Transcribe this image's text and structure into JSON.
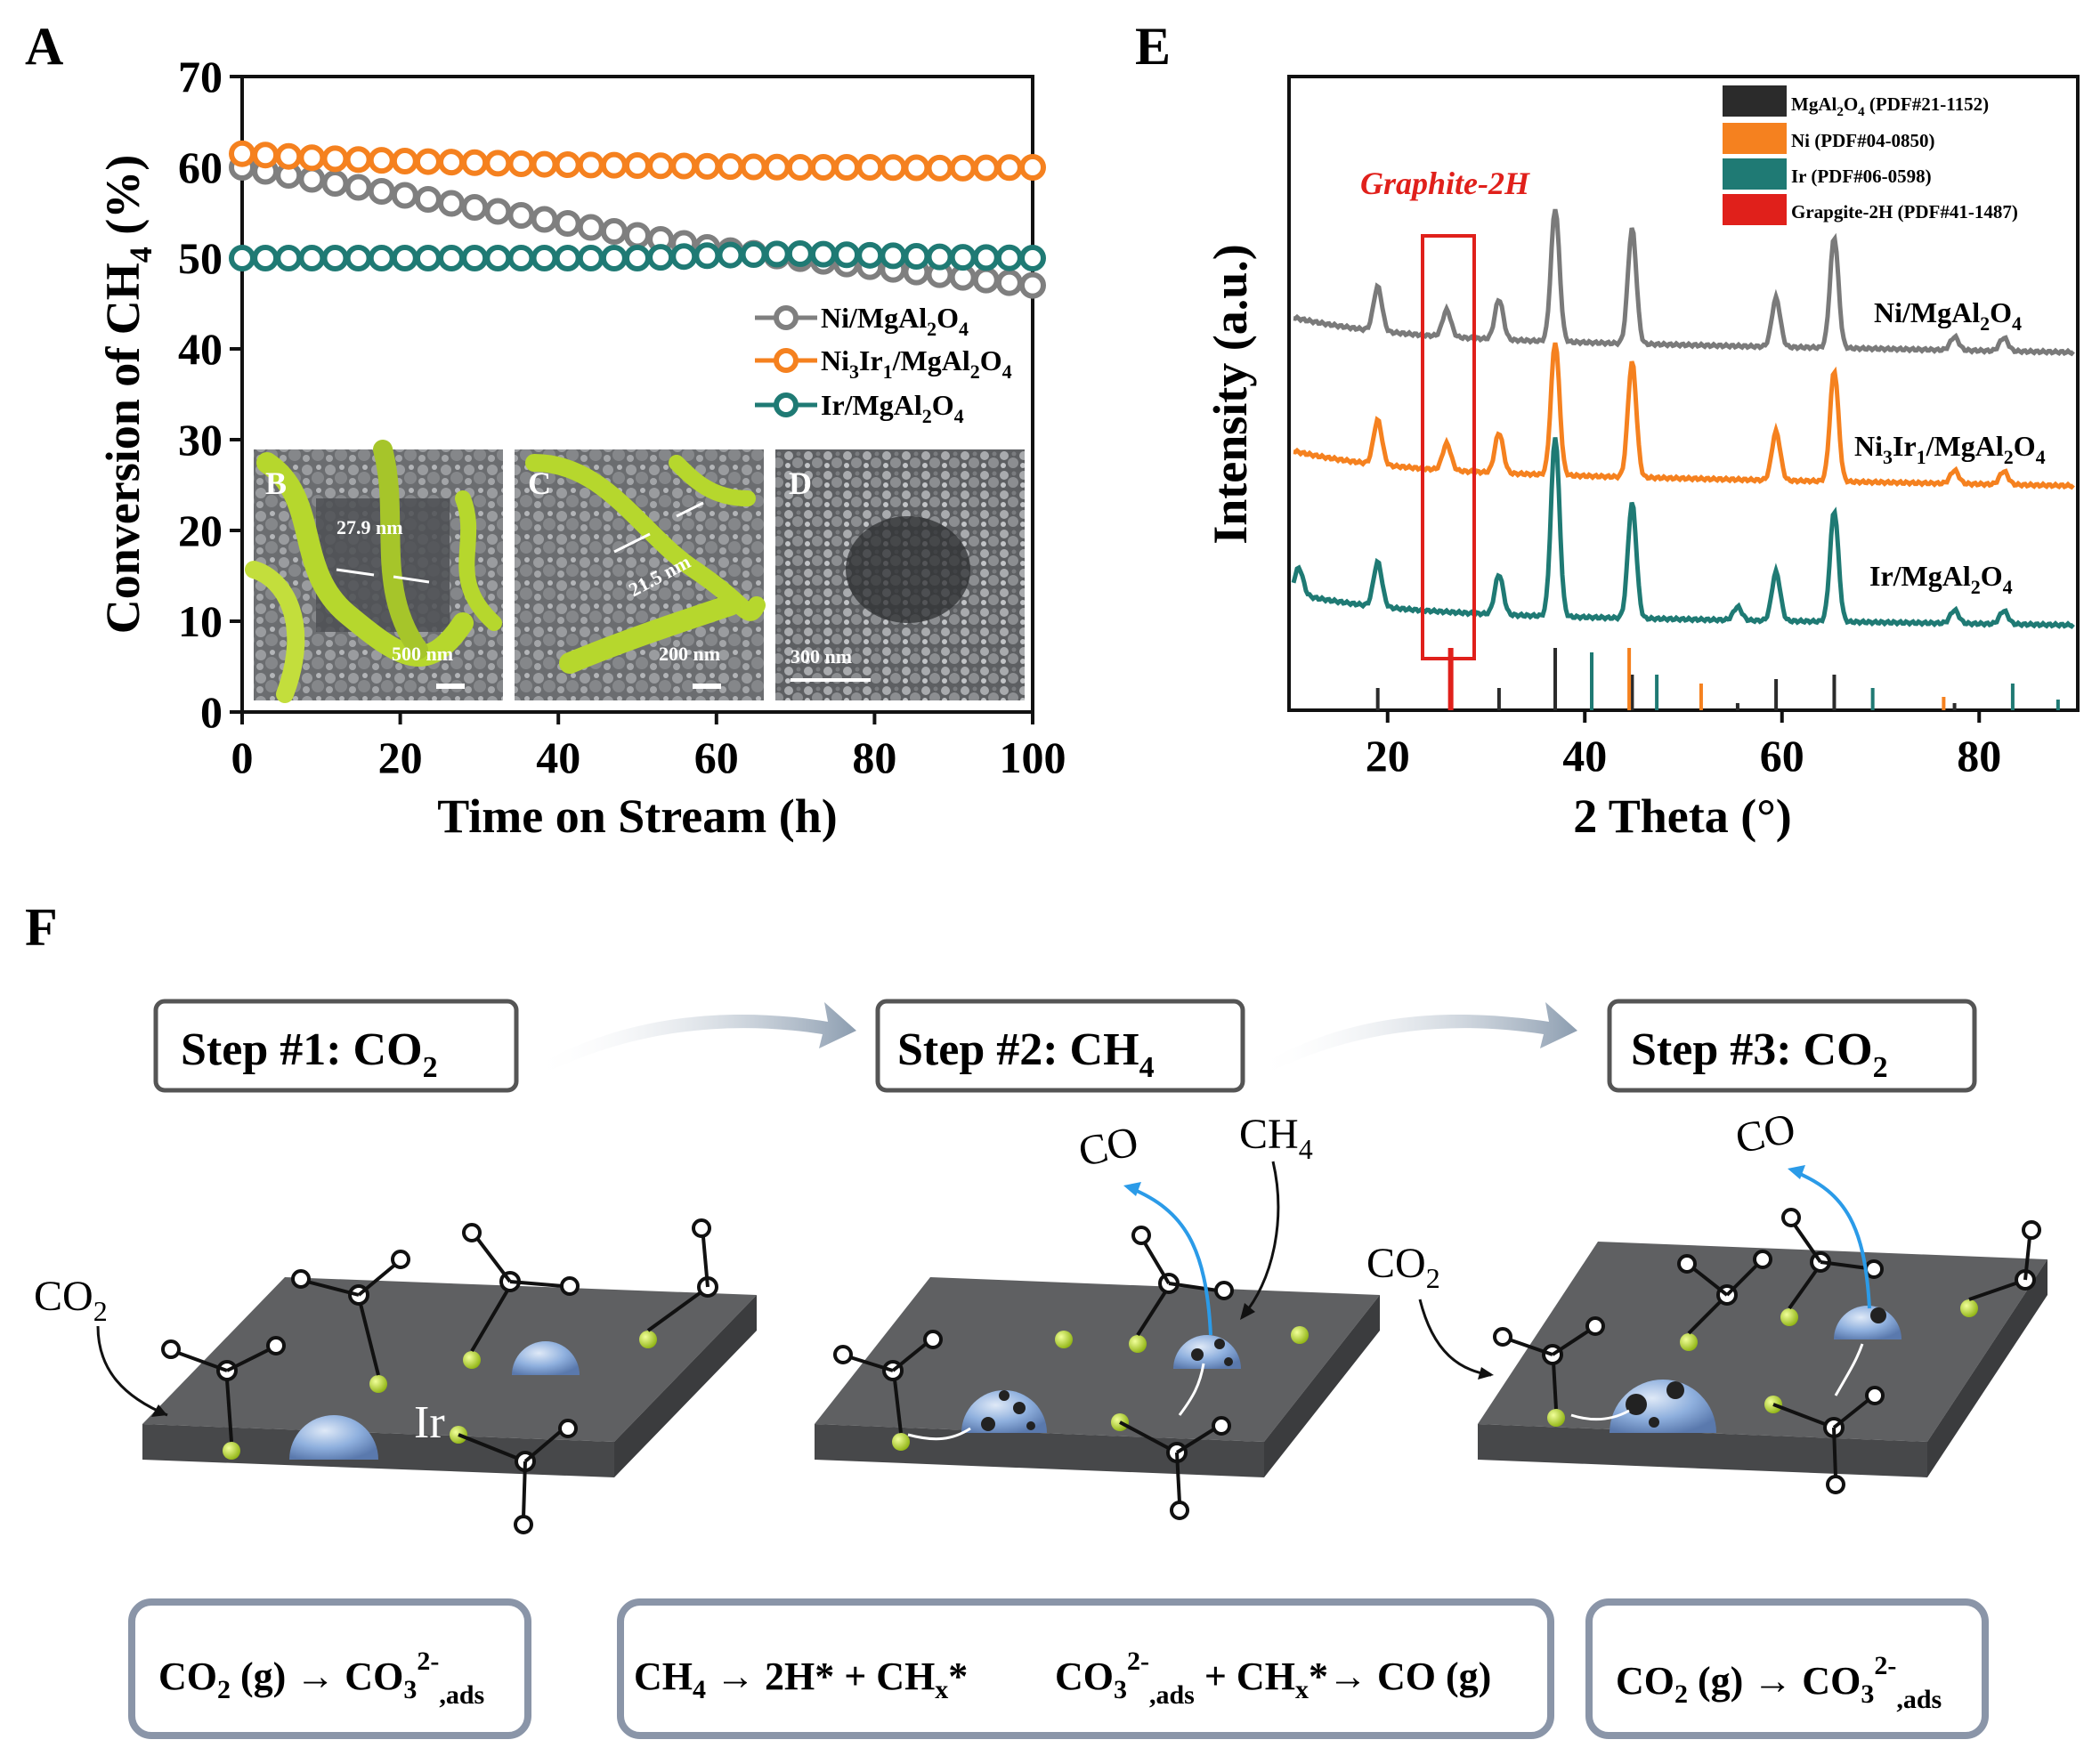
{
  "panels": {
    "A": "A",
    "B": "B",
    "C": "C",
    "D": "D",
    "E": "E",
    "F": "F"
  },
  "chart_data": [
    {
      "type": "scatter",
      "panel": "A",
      "xlabel": "Time on Stream (h)",
      "ylabel": "Conversion of CH4 (%)",
      "xlim": [
        0,
        100
      ],
      "ylim": [
        0,
        70
      ],
      "xticks": [
        0,
        20,
        40,
        60,
        80,
        100
      ],
      "yticks": [
        0,
        10,
        20,
        30,
        40,
        50,
        60,
        70
      ],
      "legend_position": "center-right",
      "series": [
        {
          "name": "Ni/MgAl2O4",
          "color": "#7f7f7f",
          "x": [
            0,
            10,
            20,
            30,
            40,
            50,
            60,
            70,
            80,
            90,
            100
          ],
          "y": [
            60,
            58.5,
            57,
            55.5,
            54,
            52.5,
            51,
            50,
            49,
            48,
            47
          ]
        },
        {
          "name": "Ni3Ir1/MgAl2O4",
          "color": "#f5811f",
          "x": [
            0,
            10,
            20,
            30,
            40,
            50,
            60,
            70,
            80,
            90,
            100
          ],
          "y": [
            61.5,
            61,
            60.7,
            60.5,
            60.3,
            60.2,
            60.1,
            60,
            60,
            59.9,
            60
          ]
        },
        {
          "name": "Ir/MgAl2O4",
          "color": "#1f7a74",
          "x": [
            0,
            10,
            20,
            30,
            40,
            50,
            60,
            70,
            80,
            90,
            100
          ],
          "y": [
            50,
            50,
            50,
            50,
            50,
            50,
            50.3,
            50.5,
            50.3,
            50.1,
            50
          ]
        }
      ],
      "insets": [
        {
          "letter": "B",
          "label1": "27.9 nm",
          "scale": "500 nm"
        },
        {
          "letter": "C",
          "label1": "21.5 nm",
          "scale": "200 nm"
        },
        {
          "letter": "D",
          "scale": "300 nm"
        }
      ]
    },
    {
      "type": "line",
      "panel": "E",
      "xlabel": "2 Theta (°)",
      "ylabel": "Intensity (a.u.)",
      "xlim": [
        10,
        90
      ],
      "xticks": [
        20,
        40,
        60,
        80
      ],
      "annotation": "Graphite-2H",
      "series": [
        {
          "name": "Ni/MgAl2O4",
          "color": "#7a7a7a",
          "peaks": [
            19,
            26,
            31.3,
            37,
            44.8,
            59.4,
            65.3,
            77.5,
            82.5
          ]
        },
        {
          "name": "Ni3Ir1/MgAl2O4",
          "color": "#f5811f",
          "peaks": [
            19,
            26,
            31.3,
            37,
            44.8,
            59.4,
            65.3,
            77.5,
            82.5
          ]
        },
        {
          "name": "Ir/MgAl2O4",
          "color": "#1f7a74",
          "peaks": [
            11,
            19,
            31.3,
            37,
            44.8,
            55.5,
            59.4,
            65.3,
            77.5,
            82.5
          ]
        }
      ],
      "reference_legend": [
        {
          "label": "MgAl2O4 (PDF#21-1152)",
          "color": "#2b2b2b"
        },
        {
          "label": "Ni (PDF#04-0850)",
          "color": "#f5811f"
        },
        {
          "label": "Ir (PDF#06-0598)",
          "color": "#1f7a74"
        },
        {
          "label": "Grapgite-2H (PDF#41-1487)",
          "color": "#e0201b"
        }
      ],
      "reference_lines": {
        "MgAl2O4": [
          19,
          31.3,
          37,
          44.8,
          55.5,
          59.4,
          65.3,
          77.5
        ],
        "Ni": [
          44.5,
          51.8,
          76.4
        ],
        "Ir": [
          40.7,
          47.3,
          69.2,
          83.4,
          88
        ],
        "Graphite": [
          26.4
        ]
      }
    }
  ],
  "scheme": {
    "steps": [
      "Step #1: CO",
      "Step #2: CH",
      "Step #3: CO"
    ],
    "step_subs": [
      "2",
      "4",
      "2"
    ],
    "molecules": {
      "co2": "CO",
      "co2_sub": "2",
      "co": "CO",
      "ch4": "CH",
      "ch4_sub": "4",
      "ir": "Ir"
    },
    "equations": {
      "eq1": "CO",
      "eq1_sub": "2",
      "eq1_rest": " (g) → CO",
      "eq1_ion_sub": "3",
      "eq1_ion_sup": "2-",
      "eq1_ion_tail": ",ads",
      "eq2a": "CH",
      "eq2a_sub": "4",
      "eq2a_rest": " → 2H* + CH",
      "eq2a_x": "x",
      "eq2a_star": "*",
      "eq2b": "CO",
      "eq2b_sub": "3",
      "eq2b_sup": "2-",
      "eq2b_ads": ",ads",
      "eq2b_rest": " + CH",
      "eq2b_x": "x",
      "eq2b_tail": "*→ CO (g)",
      "eq3": "CO",
      "eq3_sub": "2",
      "eq3_rest": " (g) → CO",
      "eq3_ion_sub": "3",
      "eq3_ion_sup": "2-",
      "eq3_ion_tail": ",ads"
    }
  },
  "colors": {
    "grey": "#7f7f7f",
    "orange": "#f5811f",
    "teal": "#1f7a74",
    "red": "#e0201b",
    "fiber": "#b6d72d",
    "sphere": "#8fb0de",
    "slab": "#5f6062",
    "blue_arrow": "#2b9be8"
  }
}
